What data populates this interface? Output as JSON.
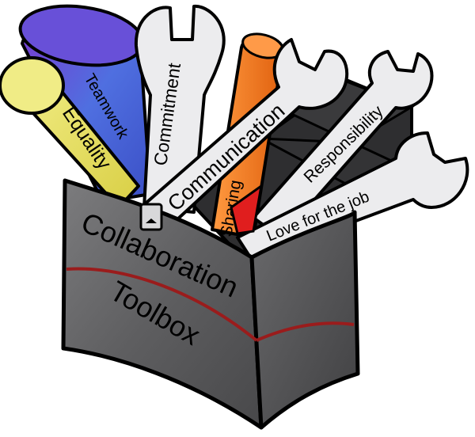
{
  "tools": [
    {
      "id": "teamwork",
      "label": "Teamwork",
      "color": "#4a63d8"
    },
    {
      "id": "equality",
      "label": "Equality",
      "color": "#ece56a"
    },
    {
      "id": "commitment",
      "label": "Commitment",
      "color": "#e8e8ea"
    },
    {
      "id": "communication",
      "label": "Communication",
      "color": "#e8e8ea"
    },
    {
      "id": "sharing",
      "label": "Sharing",
      "color": "#f07a1e"
    },
    {
      "id": "responsibility",
      "label": "Responsibility",
      "color": "#e8e8ea"
    },
    {
      "id": "love",
      "label": "Love for the job",
      "color": "#e8e8ea"
    }
  ],
  "box": {
    "line1": "Collaboration",
    "line2": "Toolbox",
    "color": "#6e6e70",
    "stripe_color": "#9a1c1c"
  }
}
